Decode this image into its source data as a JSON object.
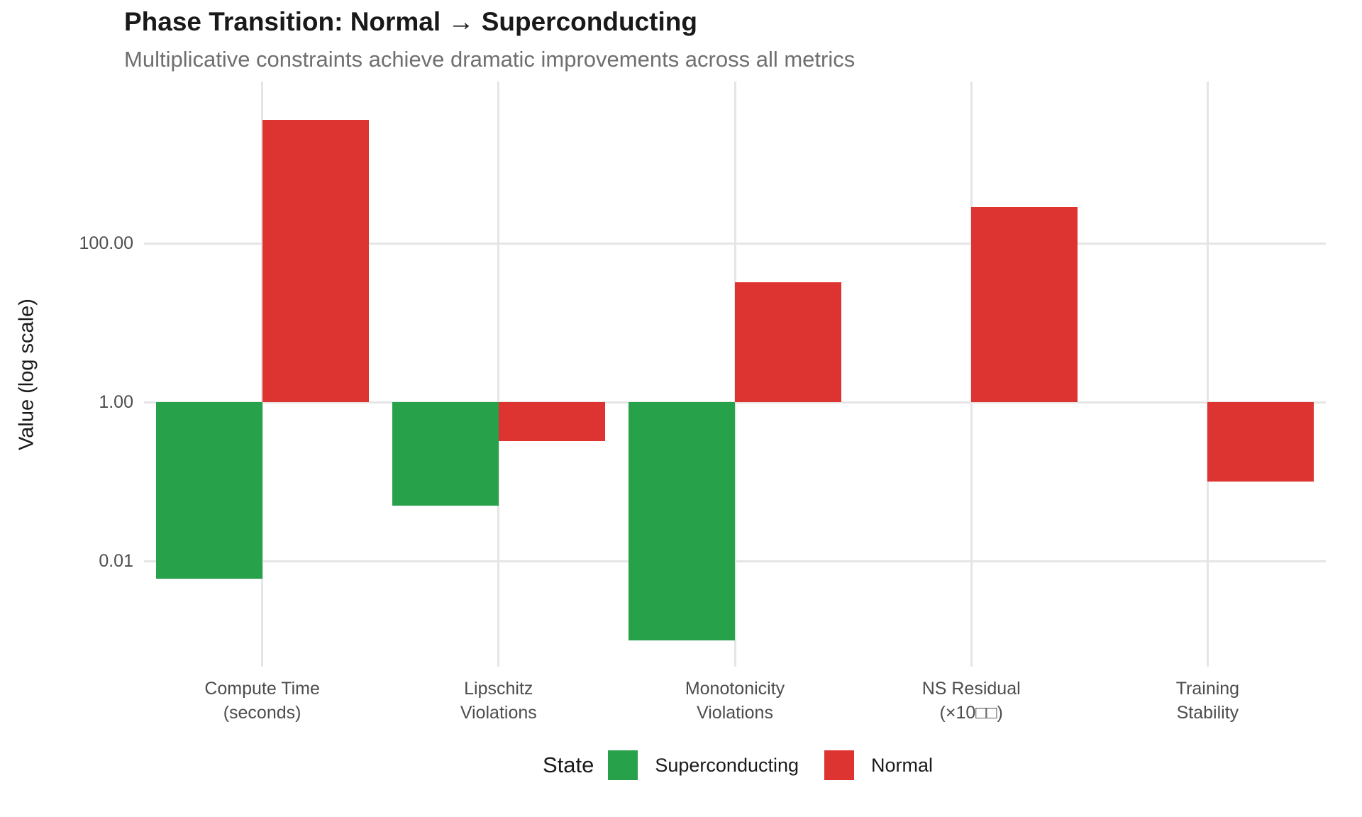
{
  "chart_data": {
    "type": "bar",
    "title": "Phase Transition: Normal → Superconducting",
    "subtitle": "Multiplicative constraints achieve dramatic improvements across all metrics",
    "ylabel": "Value (log scale)",
    "xlabel": "",
    "scale": "log10",
    "bar_baseline": 1,
    "ylim": [
      0.0005,
      11000
    ],
    "grid": true,
    "yticks": [
      {
        "value": 100,
        "label": "100.00"
      },
      {
        "value": 1,
        "label": "1.00"
      },
      {
        "value": 0.01,
        "label": "0.01"
      }
    ],
    "categories": [
      "Compute Time\n(seconds)",
      "Lipschitz\nViolations",
      "Monotonicity\nViolations",
      "NS Residual\n(×10□□)",
      "Training\nStability"
    ],
    "series": [
      {
        "name": "Superconducting",
        "color": "#28a14b",
        "values": [
          0.006,
          0.05,
          0.001,
          1.0,
          1.0
        ]
      },
      {
        "name": "Normal",
        "color": "#de3431",
        "values": [
          3600,
          0.32,
          32,
          285,
          0.1
        ]
      }
    ],
    "legend": {
      "title": "State",
      "position": "bottom",
      "entries": [
        "Superconducting",
        "Normal"
      ]
    },
    "colors": {
      "grid": "#e5e5e5",
      "tick_text": "#4d4d4d",
      "title_text": "#191919",
      "subtitle_text": "#6f6f6f"
    }
  }
}
